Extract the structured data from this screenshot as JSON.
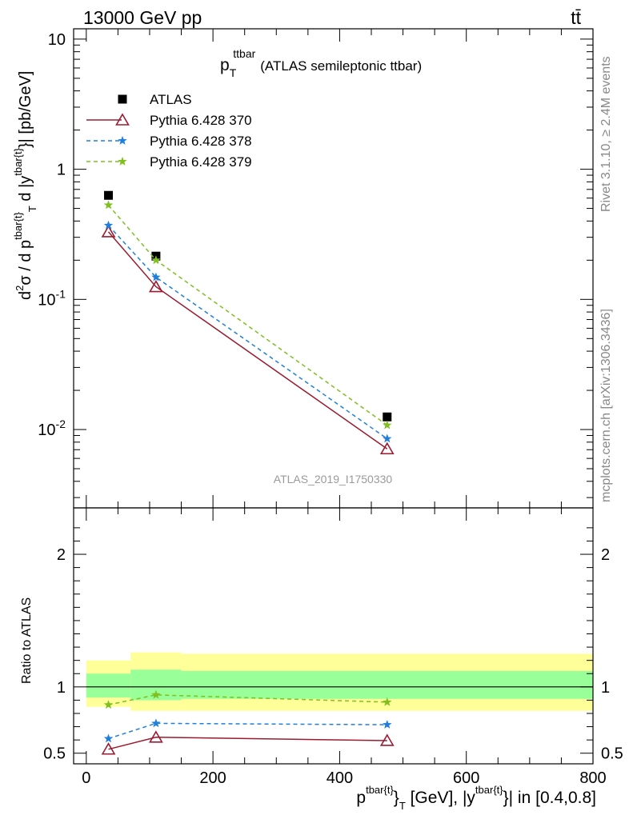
{
  "header": {
    "left": "13000 GeV pp",
    "right": "tt̄"
  },
  "side_labels": {
    "rivet": "Rivet 3.1.10, ≥ 2.4M events",
    "mcplots": "mcplots.cern.ch [arXiv:1306.3436]"
  },
  "watermark": "ATLAS_2019_I1750330",
  "chart_data": [
    {
      "type": "line",
      "panel": "main",
      "title_main": "p",
      "title_sup": "ttbar",
      "title_sub": "T",
      "title_rest": "(ATLAS semileptonic ttbar)",
      "ylabel": "d²σ / d p^{tbar{t}}_T d |y^{tbar{t}}| [pb/GeV]",
      "yscale": "log",
      "ylim": [
        0.0025,
        12
      ],
      "xlim": [
        -20,
        800
      ],
      "yticks": [
        {
          "value": 10,
          "label": "10"
        },
        {
          "value": 1,
          "label": "1"
        },
        {
          "value": 0.1,
          "label": "10^-1"
        },
        {
          "value": 0.01,
          "label": "10^-2"
        }
      ],
      "legend_position": "top-left",
      "x": [
        35,
        110,
        475
      ],
      "series": [
        {
          "name": "ATLAS",
          "color": "#000000",
          "marker": "square",
          "dash": "none",
          "values": [
            0.63,
            0.215,
            0.0125
          ]
        },
        {
          "name": "Pythia 6.428 370",
          "color": "#9b1b30",
          "marker": "open-triangle",
          "dash": "solid",
          "values": [
            0.33,
            0.125,
            0.0071
          ]
        },
        {
          "name": "Pythia 6.428 378",
          "color": "#1f7fdb",
          "marker": "star",
          "dash": "dashed",
          "values": [
            0.37,
            0.148,
            0.0085
          ]
        },
        {
          "name": "Pythia 6.428 379",
          "color": "#7fbf1f",
          "marker": "star",
          "dash": "dashed",
          "values": [
            0.53,
            0.2,
            0.0108
          ]
        }
      ]
    },
    {
      "type": "line",
      "panel": "ratio",
      "ylabel": "Ratio to ATLAS",
      "xlabel": "p^{tbar{t}}_T [GeV], |y^{tbar{t}}| in [0.4,0.8]",
      "xlim": [
        -20,
        800
      ],
      "ylim": [
        0.42,
        2.35
      ],
      "xticks": [
        {
          "value": 0,
          "label": "0"
        },
        {
          "value": 200,
          "label": "200"
        },
        {
          "value": 400,
          "label": "400"
        },
        {
          "value": 600,
          "label": "600"
        },
        {
          "value": 800,
          "label": "800"
        }
      ],
      "yticks": [
        {
          "value": 2,
          "label": "2"
        },
        {
          "value": 1,
          "label": "1"
        },
        {
          "value": 0.5,
          "label": "0.5"
        }
      ],
      "bands": [
        {
          "x0": 0,
          "x1": 70,
          "yellow": [
            0.85,
            1.2
          ],
          "green": [
            0.92,
            1.1
          ]
        },
        {
          "x0": 70,
          "x1": 150,
          "yellow": [
            0.82,
            1.26
          ],
          "green": [
            0.9,
            1.13
          ]
        },
        {
          "x0": 150,
          "x1": 800,
          "yellow": [
            0.82,
            1.25
          ],
          "green": [
            0.91,
            1.12
          ]
        }
      ],
      "reference_line": 1,
      "x": [
        35,
        110,
        475
      ],
      "series": [
        {
          "name": "Pythia 6.428 370",
          "color": "#9b1b30",
          "marker": "open-triangle",
          "dash": "solid",
          "values": [
            0.53,
            0.62,
            0.595
          ]
        },
        {
          "name": "Pythia 6.428 378",
          "color": "#1f7fdb",
          "marker": "star",
          "dash": "dashed",
          "values": [
            0.61,
            0.725,
            0.715
          ]
        },
        {
          "name": "Pythia 6.428 379",
          "color": "#7fbf1f",
          "marker": "star",
          "dash": "dashed",
          "values": [
            0.865,
            0.94,
            0.885
          ]
        }
      ]
    }
  ]
}
